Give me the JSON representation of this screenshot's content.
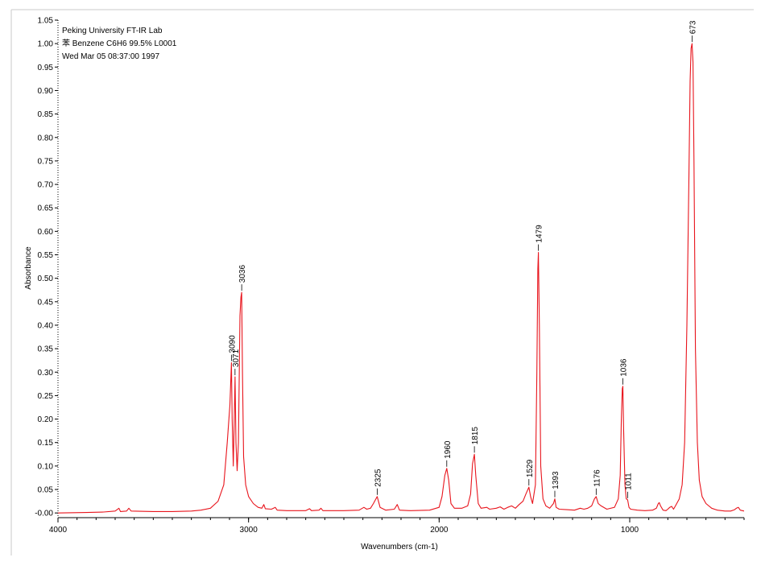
{
  "header": {
    "line1": "Peking University FT-IR Lab",
    "line2": "苯  Benzene  C6H6  99.5%   L0001",
    "line3": "Wed Mar 05 08:37:00 1997"
  },
  "colors": {
    "spectrum": "#e8141c",
    "axis": "#000000",
    "frame": "#c8c8c8"
  },
  "chart_data": {
    "type": "line",
    "xlabel": "Wavenumbers (cm-1)",
    "ylabel": "Absorbance",
    "xlim": [
      4000,
      400
    ],
    "x_reversed": true,
    "ylim": [
      -0.01,
      1.05
    ],
    "x_ticks": [
      {
        "value": 4000,
        "label": "4000"
      },
      {
        "value": 3000,
        "label": "3000"
      },
      {
        "value": 2000,
        "label": "2000"
      },
      {
        "value": 1000,
        "label": "1000"
      }
    ],
    "y_ticks": [
      {
        "value": 1.05,
        "label": "1.05"
      },
      {
        "value": 1.0,
        "label": "1.00"
      },
      {
        "value": 0.95,
        "label": "0.95"
      },
      {
        "value": 0.9,
        "label": "0.90"
      },
      {
        "value": 0.85,
        "label": "0.85"
      },
      {
        "value": 0.8,
        "label": "0.80"
      },
      {
        "value": 0.75,
        "label": "0.75"
      },
      {
        "value": 0.7,
        "label": "0.70"
      },
      {
        "value": 0.65,
        "label": "0.65"
      },
      {
        "value": 0.6,
        "label": "0.60"
      },
      {
        "value": 0.55,
        "label": "0.55"
      },
      {
        "value": 0.5,
        "label": "0.50"
      },
      {
        "value": 0.45,
        "label": "0.45"
      },
      {
        "value": 0.4,
        "label": "0.40"
      },
      {
        "value": 0.35,
        "label": "0.35"
      },
      {
        "value": 0.3,
        "label": "0.30"
      },
      {
        "value": 0.25,
        "label": "0.25"
      },
      {
        "value": 0.2,
        "label": "0.20"
      },
      {
        "value": 0.15,
        "label": "0.15"
      },
      {
        "value": 0.1,
        "label": "0.10"
      },
      {
        "value": 0.05,
        "label": "0.05"
      },
      {
        "value": 0.0,
        "label": "-0.00"
      }
    ],
    "series": [
      {
        "values": [
          [
            4000,
            0.0
          ],
          [
            3850,
            0.001
          ],
          [
            3760,
            0.002
          ],
          [
            3700,
            0.004
          ],
          [
            3680,
            0.01
          ],
          [
            3672,
            0.003
          ],
          [
            3640,
            0.004
          ],
          [
            3628,
            0.01
          ],
          [
            3616,
            0.004
          ],
          [
            3500,
            0.003
          ],
          [
            3400,
            0.003
          ],
          [
            3300,
            0.004
          ],
          [
            3250,
            0.006
          ],
          [
            3200,
            0.01
          ],
          [
            3160,
            0.025
          ],
          [
            3130,
            0.06
          ],
          [
            3112,
            0.15
          ],
          [
            3098,
            0.23
          ],
          [
            3090,
            0.32
          ],
          [
            3086,
            0.2
          ],
          [
            3080,
            0.1
          ],
          [
            3075,
            0.2
          ],
          [
            3071,
            0.29
          ],
          [
            3066,
            0.15
          ],
          [
            3060,
            0.09
          ],
          [
            3053,
            0.15
          ],
          [
            3045,
            0.42
          ],
          [
            3040,
            0.46
          ],
          [
            3036,
            0.47
          ],
          [
            3032,
            0.3
          ],
          [
            3026,
            0.12
          ],
          [
            3015,
            0.06
          ],
          [
            3000,
            0.035
          ],
          [
            2975,
            0.02
          ],
          [
            2950,
            0.012
          ],
          [
            2930,
            0.01
          ],
          [
            2920,
            0.018
          ],
          [
            2912,
            0.009
          ],
          [
            2880,
            0.008
          ],
          [
            2860,
            0.012
          ],
          [
            2850,
            0.006
          ],
          [
            2800,
            0.005
          ],
          [
            2700,
            0.005
          ],
          [
            2680,
            0.009
          ],
          [
            2670,
            0.005
          ],
          [
            2630,
            0.006
          ],
          [
            2620,
            0.01
          ],
          [
            2610,
            0.005
          ],
          [
            2500,
            0.005
          ],
          [
            2420,
            0.006
          ],
          [
            2395,
            0.012
          ],
          [
            2380,
            0.008
          ],
          [
            2360,
            0.01
          ],
          [
            2345,
            0.02
          ],
          [
            2325,
            0.035
          ],
          [
            2310,
            0.012
          ],
          [
            2280,
            0.006
          ],
          [
            2235,
            0.008
          ],
          [
            2220,
            0.018
          ],
          [
            2208,
            0.006
          ],
          [
            2150,
            0.005
          ],
          [
            2050,
            0.006
          ],
          [
            2000,
            0.012
          ],
          [
            1985,
            0.035
          ],
          [
            1970,
            0.08
          ],
          [
            1960,
            0.095
          ],
          [
            1950,
            0.07
          ],
          [
            1938,
            0.02
          ],
          [
            1920,
            0.01
          ],
          [
            1880,
            0.01
          ],
          [
            1850,
            0.015
          ],
          [
            1835,
            0.04
          ],
          [
            1825,
            0.105
          ],
          [
            1815,
            0.125
          ],
          [
            1808,
            0.08
          ],
          [
            1795,
            0.02
          ],
          [
            1780,
            0.01
          ],
          [
            1750,
            0.012
          ],
          [
            1735,
            0.008
          ],
          [
            1700,
            0.01
          ],
          [
            1680,
            0.013
          ],
          [
            1660,
            0.008
          ],
          [
            1640,
            0.012
          ],
          [
            1620,
            0.015
          ],
          [
            1600,
            0.01
          ],
          [
            1580,
            0.018
          ],
          [
            1560,
            0.025
          ],
          [
            1545,
            0.04
          ],
          [
            1529,
            0.055
          ],
          [
            1520,
            0.035
          ],
          [
            1510,
            0.02
          ],
          [
            1495,
            0.06
          ],
          [
            1487,
            0.3
          ],
          [
            1482,
            0.52
          ],
          [
            1479,
            0.555
          ],
          [
            1474,
            0.4
          ],
          [
            1467,
            0.1
          ],
          [
            1455,
            0.03
          ],
          [
            1440,
            0.015
          ],
          [
            1420,
            0.01
          ],
          [
            1400,
            0.02
          ],
          [
            1393,
            0.03
          ],
          [
            1386,
            0.012
          ],
          [
            1370,
            0.008
          ],
          [
            1330,
            0.007
          ],
          [
            1290,
            0.006
          ],
          [
            1260,
            0.01
          ],
          [
            1240,
            0.008
          ],
          [
            1220,
            0.01
          ],
          [
            1200,
            0.015
          ],
          [
            1185,
            0.03
          ],
          [
            1176,
            0.035
          ],
          [
            1165,
            0.02
          ],
          [
            1150,
            0.015
          ],
          [
            1120,
            0.008
          ],
          [
            1080,
            0.012
          ],
          [
            1060,
            0.03
          ],
          [
            1050,
            0.08
          ],
          [
            1044,
            0.2
          ],
          [
            1039,
            0.265
          ],
          [
            1036,
            0.27
          ],
          [
            1032,
            0.18
          ],
          [
            1025,
            0.06
          ],
          [
            1018,
            0.03
          ],
          [
            1011,
            0.028
          ],
          [
            1004,
            0.012
          ],
          [
            995,
            0.008
          ],
          [
            960,
            0.006
          ],
          [
            920,
            0.005
          ],
          [
            880,
            0.006
          ],
          [
            860,
            0.01
          ],
          [
            850,
            0.02
          ],
          [
            845,
            0.022
          ],
          [
            838,
            0.015
          ],
          [
            825,
            0.006
          ],
          [
            810,
            0.005
          ],
          [
            800,
            0.008
          ],
          [
            790,
            0.012
          ],
          [
            780,
            0.014
          ],
          [
            770,
            0.008
          ],
          [
            760,
            0.015
          ],
          [
            740,
            0.03
          ],
          [
            725,
            0.06
          ],
          [
            712,
            0.15
          ],
          [
            700,
            0.4
          ],
          [
            690,
            0.7
          ],
          [
            683,
            0.92
          ],
          [
            678,
            0.99
          ],
          [
            673,
            1.0
          ],
          [
            668,
            0.96
          ],
          [
            663,
            0.75
          ],
          [
            655,
            0.35
          ],
          [
            645,
            0.15
          ],
          [
            635,
            0.07
          ],
          [
            620,
            0.035
          ],
          [
            600,
            0.02
          ],
          [
            570,
            0.01
          ],
          [
            540,
            0.006
          ],
          [
            500,
            0.004
          ],
          [
            470,
            0.004
          ],
          [
            450,
            0.007
          ],
          [
            440,
            0.01
          ],
          [
            430,
            0.012
          ],
          [
            420,
            0.006
          ],
          [
            400,
            0.004
          ]
        ]
      }
    ],
    "annotations": [
      {
        "label": "3090",
        "x": 3090,
        "y": 0.32
      },
      {
        "label": "3071",
        "x": 3071,
        "y": 0.29
      },
      {
        "label": "3036",
        "x": 3036,
        "y": 0.47
      },
      {
        "label": "2325",
        "x": 2325,
        "y": 0.035
      },
      {
        "label": "1960",
        "x": 1960,
        "y": 0.095
      },
      {
        "label": "1815",
        "x": 1815,
        "y": 0.125
      },
      {
        "label": "1529",
        "x": 1529,
        "y": 0.055
      },
      {
        "label": "1479",
        "x": 1479,
        "y": 0.555
      },
      {
        "label": "1393",
        "x": 1393,
        "y": 0.03
      },
      {
        "label": "1176",
        "x": 1176,
        "y": 0.035
      },
      {
        "label": "1036",
        "x": 1036,
        "y": 0.27
      },
      {
        "label": "1011",
        "x": 1011,
        "y": 0.028
      },
      {
        "label": "673",
        "x": 673,
        "y": 1.0
      }
    ]
  }
}
